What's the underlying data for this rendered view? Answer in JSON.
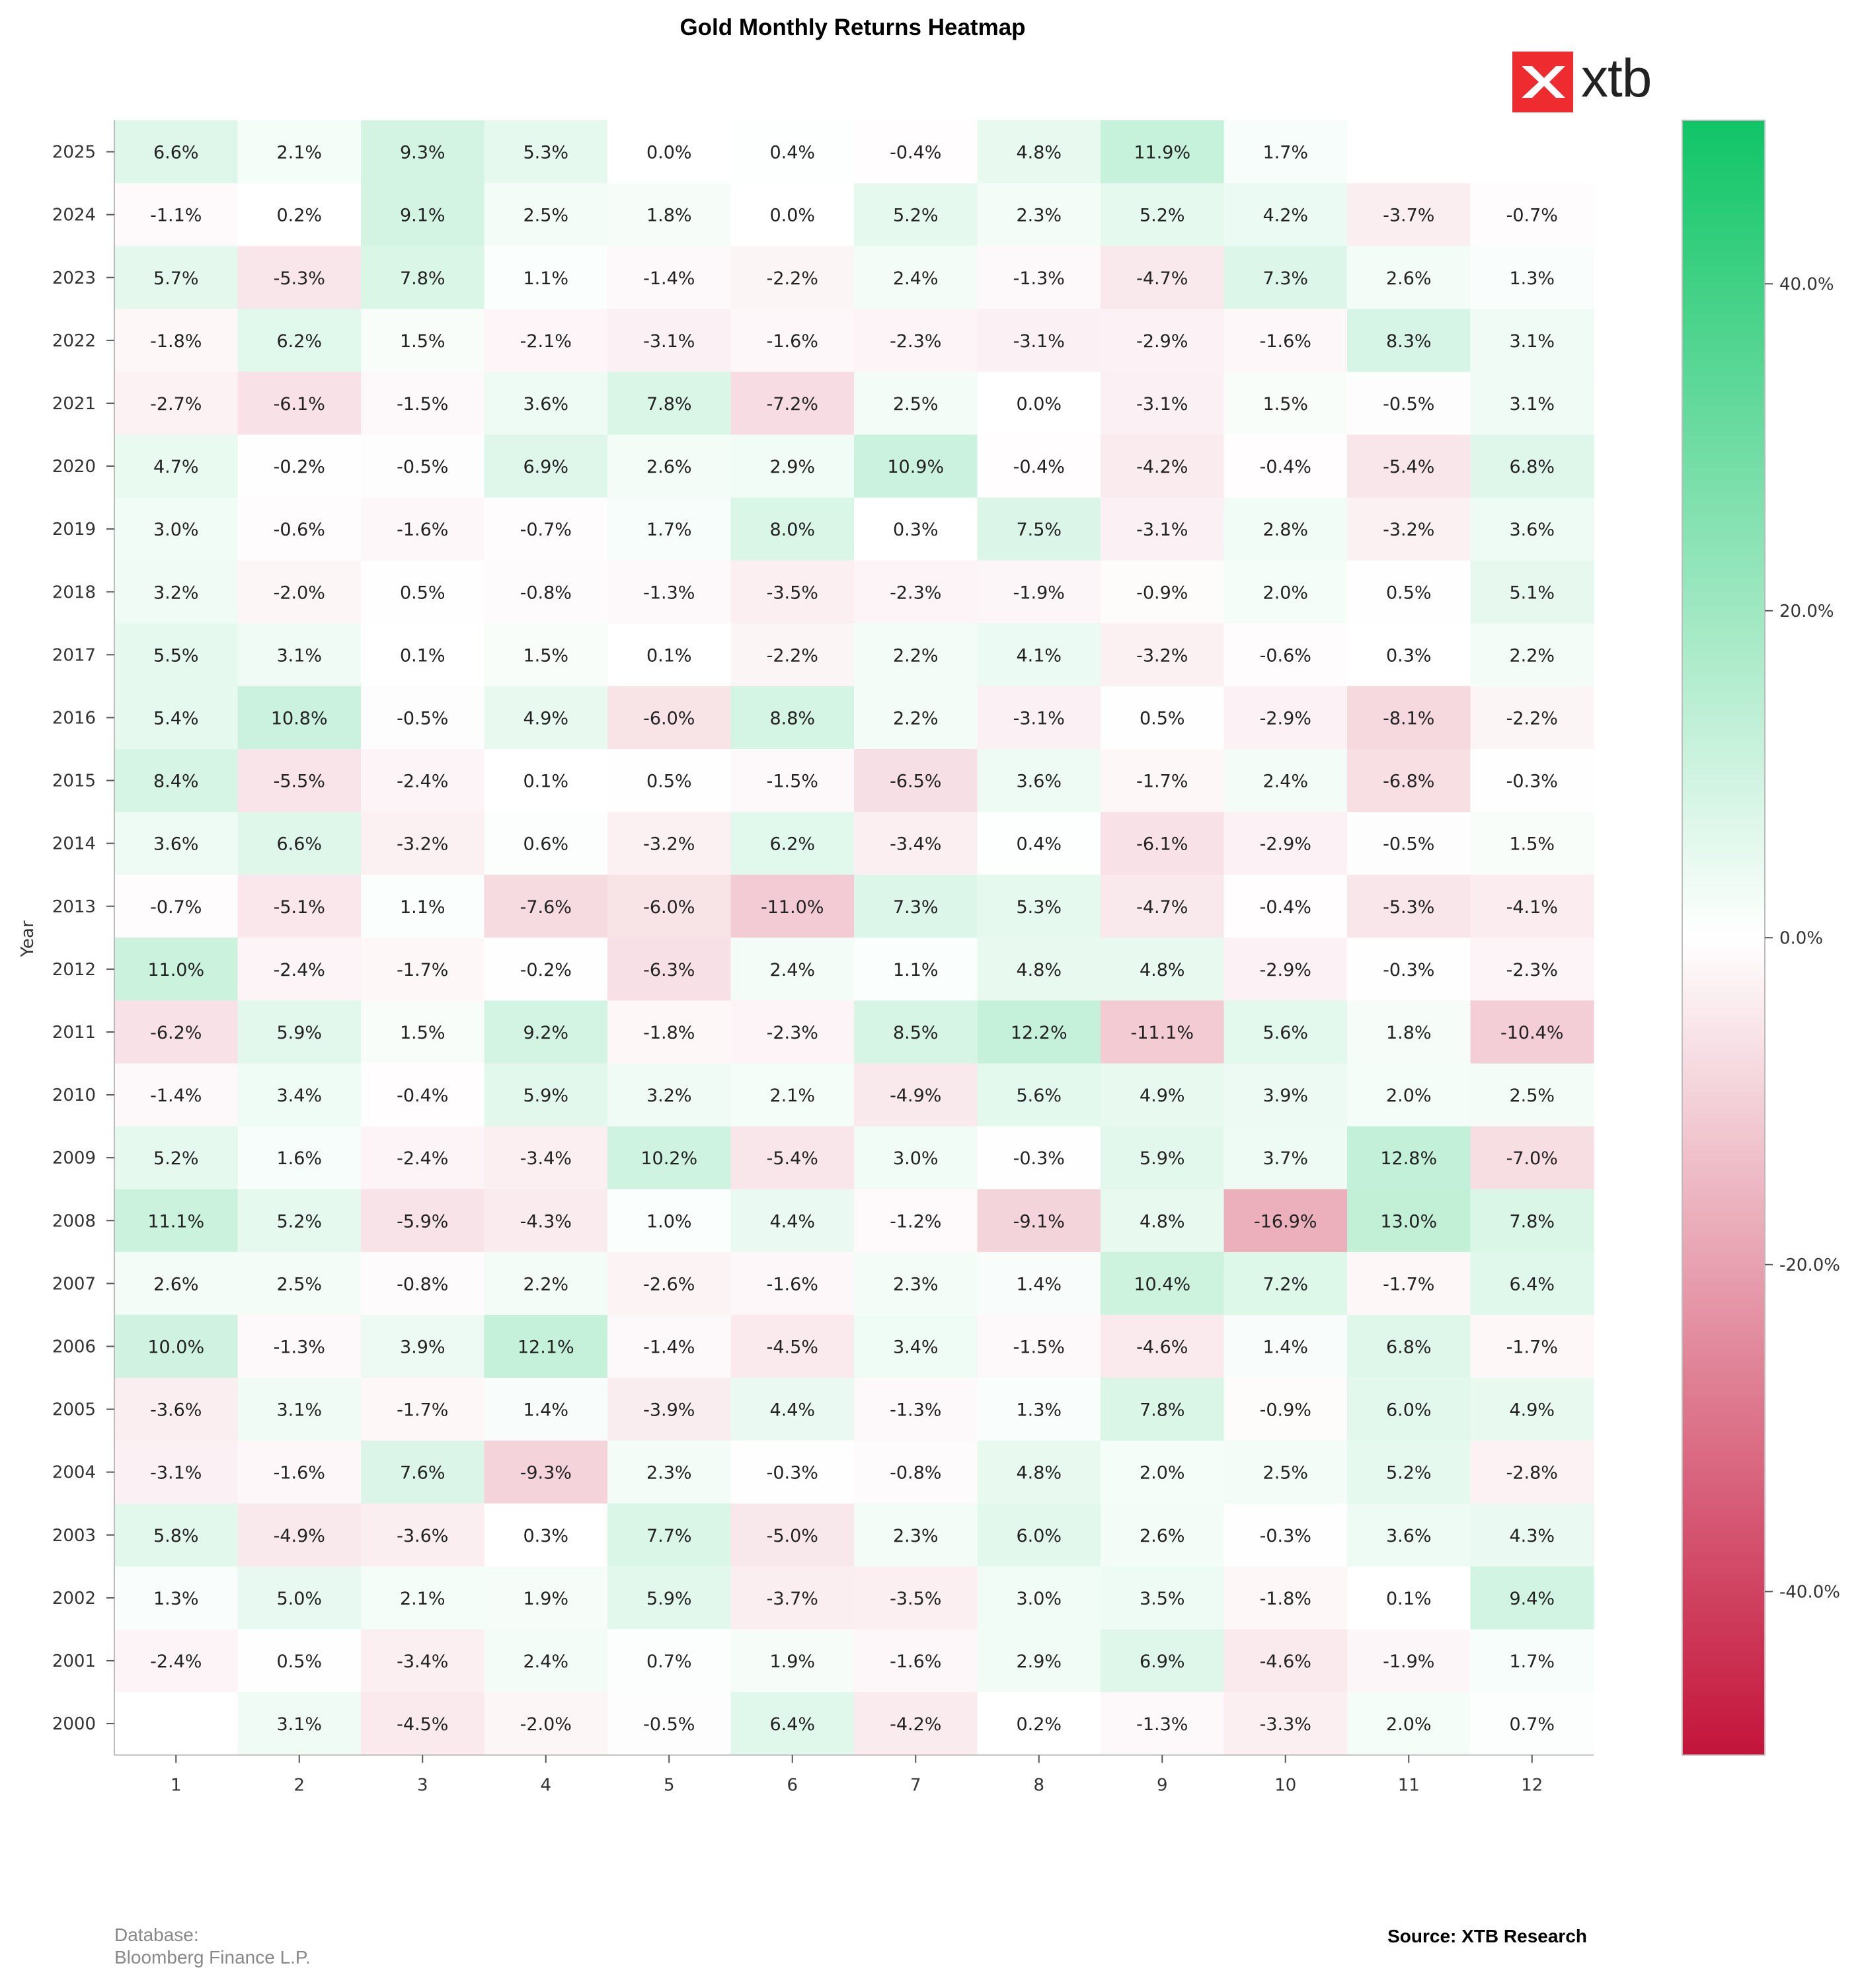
{
  "title": "Gold Monthly Returns Heatmap",
  "logo": {
    "text": "xtb",
    "color": "#ee2b2f"
  },
  "footer": {
    "database_label": "Database:",
    "database_value": "Bloomberg Finance L.P.",
    "source": "Source: XTB Research"
  },
  "chart_data": {
    "type": "heatmap",
    "title": "Gold Monthly Returns Heatmap",
    "xlabel": "",
    "ylabel": "Year",
    "x_categories": [
      "1",
      "2",
      "3",
      "4",
      "5",
      "6",
      "7",
      "8",
      "9",
      "10",
      "11",
      "12"
    ],
    "y_categories": [
      "2025",
      "2024",
      "2023",
      "2022",
      "2021",
      "2020",
      "2019",
      "2018",
      "2017",
      "2016",
      "2015",
      "2014",
      "2013",
      "2012",
      "2011",
      "2010",
      "2009",
      "2008",
      "2007",
      "2006",
      "2005",
      "2004",
      "2003",
      "2002",
      "2001",
      "2000"
    ],
    "values": [
      [
        6.6,
        2.1,
        9.3,
        5.3,
        0.0,
        0.4,
        -0.4,
        4.8,
        11.9,
        1.7,
        null,
        null
      ],
      [
        -1.1,
        0.2,
        9.1,
        2.5,
        1.8,
        -0.0,
        5.2,
        2.3,
        5.2,
        4.2,
        -3.7,
        -0.7
      ],
      [
        5.7,
        -5.3,
        7.8,
        1.1,
        -1.4,
        -2.2,
        2.4,
        -1.3,
        -4.7,
        7.3,
        2.6,
        1.3
      ],
      [
        -1.8,
        6.2,
        1.5,
        -2.1,
        -3.1,
        -1.6,
        -2.3,
        -3.1,
        -2.9,
        -1.6,
        8.3,
        3.1
      ],
      [
        -2.7,
        -6.1,
        -1.5,
        3.6,
        7.8,
        -7.2,
        2.5,
        -0.0,
        -3.1,
        1.5,
        -0.5,
        3.1
      ],
      [
        4.7,
        -0.2,
        -0.5,
        6.9,
        2.6,
        2.9,
        10.9,
        -0.4,
        -4.2,
        -0.4,
        -5.4,
        6.8
      ],
      [
        3.0,
        -0.6,
        -1.6,
        -0.7,
        1.7,
        8.0,
        0.3,
        7.5,
        -3.1,
        2.8,
        -3.2,
        3.6
      ],
      [
        3.2,
        -2.0,
        0.5,
        -0.8,
        -1.3,
        -3.5,
        -2.3,
        -1.9,
        -0.9,
        2.0,
        0.5,
        5.1
      ],
      [
        5.5,
        3.1,
        0.1,
        1.5,
        0.1,
        -2.2,
        2.2,
        4.1,
        -3.2,
        -0.6,
        0.3,
        2.2
      ],
      [
        5.4,
        10.8,
        -0.5,
        4.9,
        -6.0,
        8.8,
        2.2,
        -3.1,
        0.5,
        -2.9,
        -8.1,
        -2.2
      ],
      [
        8.4,
        -5.5,
        -2.4,
        0.1,
        0.5,
        -1.5,
        -6.5,
        3.6,
        -1.7,
        2.4,
        -6.8,
        -0.3
      ],
      [
        3.6,
        6.6,
        -3.2,
        0.6,
        -3.2,
        6.2,
        -3.4,
        0.4,
        -6.1,
        -2.9,
        -0.5,
        1.5
      ],
      [
        -0.7,
        -5.1,
        1.1,
        -7.6,
        -6.0,
        -11.0,
        7.3,
        5.3,
        -4.7,
        -0.4,
        -5.3,
        -4.1
      ],
      [
        11.0,
        -2.4,
        -1.7,
        -0.2,
        -6.3,
        2.4,
        1.1,
        4.8,
        4.8,
        -2.9,
        -0.3,
        -2.3
      ],
      [
        -6.2,
        5.9,
        1.5,
        9.2,
        -1.8,
        -2.3,
        8.5,
        12.2,
        -11.1,
        5.6,
        1.8,
        -10.4
      ],
      [
        -1.4,
        3.4,
        -0.4,
        5.9,
        3.2,
        2.1,
        -4.9,
        5.6,
        4.9,
        3.9,
        2.0,
        2.5
      ],
      [
        5.2,
        1.6,
        -2.4,
        -3.4,
        10.2,
        -5.4,
        3.0,
        -0.3,
        5.9,
        3.7,
        12.8,
        -7.0
      ],
      [
        11.1,
        5.2,
        -5.9,
        -4.3,
        1.0,
        4.4,
        -1.2,
        -9.1,
        4.8,
        -16.9,
        13.0,
        7.8
      ],
      [
        2.6,
        2.5,
        -0.8,
        2.2,
        -2.6,
        -1.6,
        2.3,
        1.4,
        10.4,
        7.2,
        -1.7,
        6.4
      ],
      [
        10.0,
        -1.3,
        3.9,
        12.1,
        -1.4,
        -4.5,
        3.4,
        -1.5,
        -4.6,
        1.4,
        6.8,
        -1.7
      ],
      [
        -3.6,
        3.1,
        -1.7,
        1.4,
        -3.9,
        4.4,
        -1.3,
        1.3,
        7.8,
        -0.9,
        6.0,
        4.9
      ],
      [
        -3.1,
        -1.6,
        7.6,
        -9.3,
        2.3,
        -0.3,
        -0.8,
        4.8,
        2.0,
        2.5,
        5.2,
        -2.8
      ],
      [
        5.8,
        -4.9,
        -3.6,
        0.3,
        7.7,
        -5.0,
        2.3,
        6.0,
        2.6,
        -0.3,
        3.6,
        4.3
      ],
      [
        1.3,
        5.0,
        2.1,
        1.9,
        5.9,
        -3.7,
        -3.5,
        3.0,
        3.5,
        -1.8,
        0.1,
        9.4
      ],
      [
        -2.4,
        0.5,
        -3.4,
        2.4,
        0.7,
        1.9,
        -1.6,
        2.9,
        6.9,
        -4.6,
        -1.9,
        1.7
      ],
      [
        null,
        3.1,
        -4.5,
        -2.0,
        -0.5,
        6.4,
        -4.2,
        0.2,
        -1.3,
        -3.3,
        2.0,
        0.7
      ]
    ],
    "value_format": "percent, 1 decimal",
    "color_scale": {
      "min": -50,
      "max": 50,
      "low_color": "#c4143a",
      "mid_color": "#ffffff",
      "high_color": "#10c566",
      "ticks": [
        40,
        20,
        0,
        -20,
        -40
      ],
      "tick_labels": [
        "40.0%",
        "20.0%",
        "0.0%",
        "-20.0%",
        "-40.0%"
      ]
    },
    "grid": false,
    "colorbar_position": "right"
  }
}
